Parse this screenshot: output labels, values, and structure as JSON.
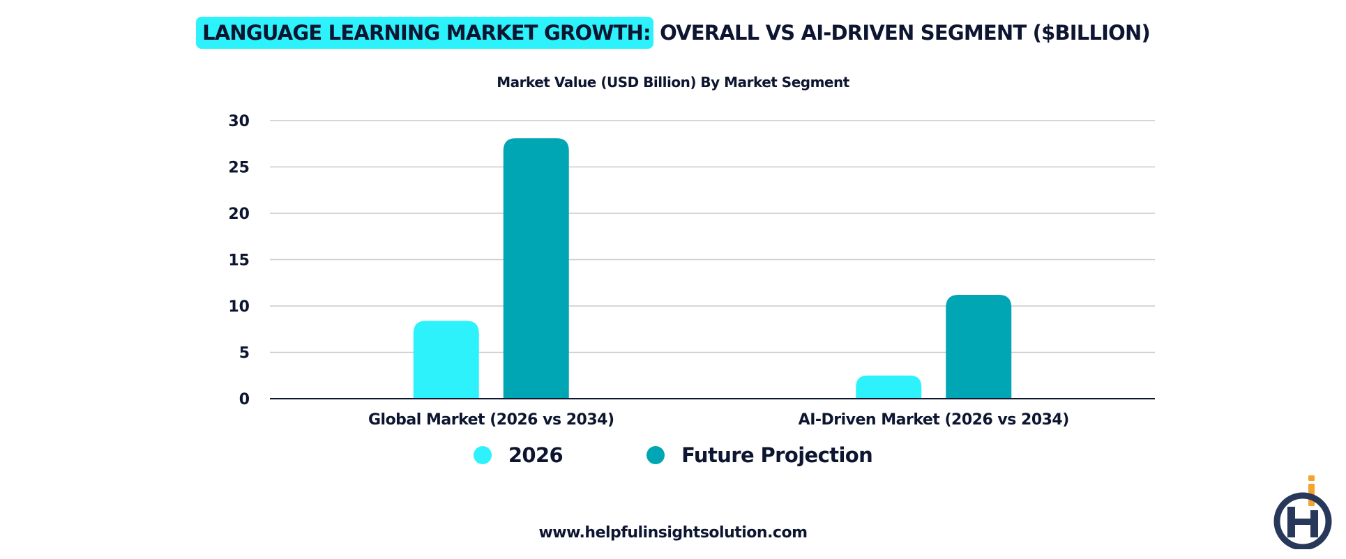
{
  "title": {
    "highlight": "LANGUAGE LEARNING MARKET GROWTH:",
    "rest": " OVERALL VS AI-DRIVEN SEGMENT ($BILLION)"
  },
  "subtitle": "Market Value (USD Billion) By Market Segment",
  "footer": "www.helpfulinsightsolution.com",
  "logo": {
    "icon": "helpful-insight-logo",
    "colors": {
      "navy": "#27385a",
      "orange": "#f3a32f"
    }
  },
  "chart_data": {
    "type": "bar",
    "categories": [
      "Global Market (2026 vs 2034)",
      "AI-Driven Market (2026 vs 2034)"
    ],
    "series": [
      {
        "name": "2026",
        "values": [
          8.4,
          2.5
        ],
        "color": "#2ef2fb"
      },
      {
        "name": "Future Projection",
        "values": [
          28.1,
          11.2
        ],
        "color": "#00a6b4"
      }
    ],
    "ylim": [
      0,
      30
    ],
    "yticks": [
      0,
      5,
      10,
      15,
      20,
      25,
      30
    ],
    "grid": true,
    "legend": "bottom-center"
  }
}
